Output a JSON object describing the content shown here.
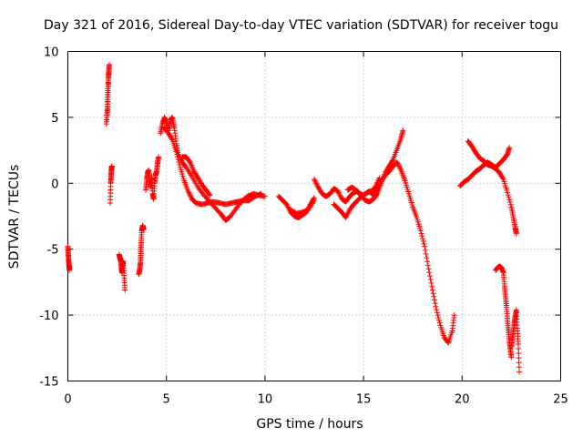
{
  "chart_data": {
    "type": "scatter",
    "title": "Day 321 of 2016, Sidereal Day-to-day VTEC variation (SDTVAR) for receiver togu",
    "xlabel": "GPS time / hours",
    "ylabel": "SDTVAR / TECUs",
    "xlim": [
      0,
      25
    ],
    "ylim": [
      -15,
      10
    ],
    "xticks": [
      0,
      5,
      10,
      15,
      20,
      25
    ],
    "yticks": [
      -15,
      -10,
      -5,
      0,
      5,
      10
    ],
    "xtick_labels": [
      "0",
      "5",
      "10",
      "15",
      "20",
      "25"
    ],
    "ytick_labels": [
      "-15",
      "-10",
      "-5",
      "0",
      "5",
      "10"
    ],
    "grid": true,
    "marker": "+",
    "marker_color": "#ff0000",
    "series": [
      {
        "name": "SDTVAR",
        "color": "#ff0000",
        "segments": [
          [
            [
              0.0,
              -4.8
            ],
            [
              0.02,
              -5.3
            ],
            [
              0.04,
              -5.8
            ],
            [
              0.06,
              -6.2
            ],
            [
              0.08,
              -6.6
            ]
          ],
          [
            [
              1.95,
              4.5
            ],
            [
              2.0,
              5.5
            ],
            [
              2.02,
              6.5
            ],
            [
              2.04,
              7.3
            ],
            [
              2.06,
              8.0
            ],
            [
              2.08,
              8.5
            ],
            [
              2.1,
              9.0
            ],
            [
              1.98,
              4.8
            ],
            [
              2.02,
              6.0
            ]
          ],
          [
            [
              2.15,
              -1.5
            ],
            [
              2.17,
              0.0
            ],
            [
              2.19,
              0.5
            ],
            [
              2.21,
              1.0
            ],
            [
              2.23,
              1.3
            ]
          ],
          [
            [
              2.6,
              -5.4
            ],
            [
              2.65,
              -5.7
            ],
            [
              2.7,
              -6.0
            ],
            [
              2.72,
              -6.5
            ],
            [
              2.75,
              -6.8
            ],
            [
              2.78,
              -6.2
            ],
            [
              2.8,
              -5.9
            ],
            [
              2.85,
              -7.0
            ],
            [
              2.9,
              -8.1
            ]
          ],
          [
            [
              3.6,
              -6.9
            ],
            [
              3.65,
              -6.5
            ],
            [
              3.68,
              -6.0
            ],
            [
              3.7,
              -5.2
            ],
            [
              3.72,
              -4.5
            ],
            [
              3.75,
              -3.6
            ],
            [
              3.78,
              -3.4
            ],
            [
              3.8,
              -3.2
            ],
            [
              3.85,
              -3.5
            ]
          ],
          [
            [
              3.95,
              -0.5
            ],
            [
              4.0,
              0.3
            ],
            [
              4.05,
              0.8
            ],
            [
              4.1,
              1.0
            ],
            [
              4.15,
              0.2
            ],
            [
              4.2,
              -0.3
            ],
            [
              4.25,
              0.5
            ],
            [
              4.3,
              -0.8
            ],
            [
              4.35,
              -1.2
            ],
            [
              4.4,
              0.0
            ],
            [
              4.45,
              0.6
            ],
            [
              4.5,
              0.9
            ],
            [
              4.55,
              1.5
            ],
            [
              4.6,
              2.0
            ]
          ],
          [
            [
              4.7,
              3.8
            ],
            [
              4.8,
              4.5
            ],
            [
              4.9,
              5.0
            ],
            [
              5.0,
              4.6
            ],
            [
              5.1,
              4.0
            ],
            [
              5.2,
              4.8
            ],
            [
              5.3,
              5.0
            ],
            [
              5.4,
              4.2
            ],
            [
              5.5,
              3.0
            ],
            [
              5.6,
              2.2
            ],
            [
              5.8,
              1.6
            ],
            [
              6.0,
              1.2
            ],
            [
              6.3,
              0.5
            ],
            [
              6.6,
              -0.3
            ],
            [
              6.9,
              -0.9
            ],
            [
              7.2,
              -1.4
            ],
            [
              7.5,
              -1.9
            ],
            [
              7.8,
              -2.4
            ],
            [
              8.0,
              -2.8
            ],
            [
              8.2,
              -2.6
            ],
            [
              8.5,
              -2.0
            ],
            [
              8.8,
              -1.4
            ],
            [
              9.1,
              -1.0
            ],
            [
              9.4,
              -0.8
            ],
            [
              9.7,
              -0.9
            ],
            [
              10.0,
              -1.0
            ]
          ],
          [
            [
              4.9,
              4.2
            ],
            [
              5.1,
              3.8
            ],
            [
              5.3,
              3.3
            ],
            [
              5.5,
              2.4
            ],
            [
              5.7,
              1.2
            ],
            [
              5.9,
              0.2
            ],
            [
              6.1,
              -0.6
            ],
            [
              6.3,
              -1.2
            ],
            [
              6.5,
              -1.5
            ],
            [
              6.8,
              -1.6
            ],
            [
              7.1,
              -1.5
            ],
            [
              7.4,
              -1.4
            ],
            [
              7.7,
              -1.5
            ],
            [
              8.0,
              -1.6
            ],
            [
              8.3,
              -1.5
            ],
            [
              8.6,
              -1.4
            ],
            [
              8.9,
              -1.3
            ],
            [
              9.2,
              -1.3
            ],
            [
              9.5,
              -1.0
            ],
            [
              9.8,
              -0.8
            ]
          ],
          [
            [
              5.8,
              2.0
            ],
            [
              6.0,
              2.0
            ],
            [
              6.2,
              1.6
            ],
            [
              6.4,
              0.9
            ],
            [
              6.6,
              0.4
            ],
            [
              6.8,
              -0.1
            ],
            [
              7.0,
              -0.5
            ],
            [
              7.2,
              -0.9
            ]
          ],
          [
            [
              10.7,
              -1.0
            ],
            [
              10.9,
              -1.3
            ],
            [
              11.1,
              -1.6
            ],
            [
              11.3,
              -2.2
            ],
            [
              11.5,
              -2.5
            ],
            [
              11.7,
              -2.6
            ],
            [
              11.9,
              -2.4
            ],
            [
              12.1,
              -2.2
            ],
            [
              12.3,
              -1.6
            ],
            [
              12.5,
              -1.1
            ]
          ],
          [
            [
              11.3,
              -2.0
            ],
            [
              11.6,
              -2.3
            ],
            [
              11.9,
              -2.2
            ],
            [
              12.2,
              -2.0
            ],
            [
              12.5,
              -1.3
            ]
          ],
          [
            [
              12.5,
              0.3
            ],
            [
              12.7,
              -0.3
            ],
            [
              12.9,
              -0.8
            ],
            [
              13.1,
              -1.0
            ],
            [
              13.3,
              -0.8
            ],
            [
              13.5,
              -0.4
            ],
            [
              13.7,
              -0.6
            ],
            [
              13.9,
              -1.2
            ],
            [
              14.1,
              -1.4
            ],
            [
              14.3,
              -1.0
            ],
            [
              14.5,
              -0.7
            ],
            [
              14.7,
              -0.6
            ],
            [
              14.9,
              -1.0
            ],
            [
              15.1,
              -1.3
            ],
            [
              15.3,
              -1.4
            ],
            [
              15.5,
              -1.2
            ],
            [
              15.7,
              -0.8
            ],
            [
              15.9,
              0.0
            ],
            [
              16.1,
              0.8
            ],
            [
              16.3,
              1.3
            ],
            [
              16.5,
              1.8
            ],
            [
              16.7,
              2.6
            ],
            [
              16.9,
              3.4
            ],
            [
              17.0,
              4.0
            ]
          ],
          [
            [
              13.5,
              -1.6
            ],
            [
              13.7,
              -1.9
            ],
            [
              13.9,
              -2.2
            ],
            [
              14.1,
              -2.6
            ],
            [
              14.3,
              -2.0
            ],
            [
              14.5,
              -1.6
            ],
            [
              14.7,
              -1.3
            ],
            [
              14.9,
              -1.0
            ],
            [
              15.1,
              -0.8
            ],
            [
              15.3,
              -0.6
            ],
            [
              15.5,
              -0.9
            ],
            [
              15.7,
              -0.5
            ],
            [
              15.9,
              0.2
            ],
            [
              16.1,
              0.6
            ],
            [
              16.3,
              0.9
            ],
            [
              16.5,
              1.3
            ],
            [
              16.7,
              1.6
            ],
            [
              16.9,
              1.0
            ],
            [
              17.1,
              0.2
            ],
            [
              17.3,
              -0.8
            ],
            [
              17.5,
              -1.8
            ],
            [
              17.7,
              -2.6
            ],
            [
              17.9,
              -3.6
            ],
            [
              18.1,
              -4.8
            ],
            [
              18.3,
              -6.5
            ],
            [
              18.5,
              -8.1
            ],
            [
              18.7,
              -9.6
            ],
            [
              18.9,
              -10.8
            ],
            [
              19.1,
              -11.7
            ],
            [
              19.3,
              -12.1
            ],
            [
              19.5,
              -11.2
            ],
            [
              19.6,
              -10.0
            ]
          ],
          [
            [
              14.2,
              -0.5
            ],
            [
              14.4,
              -0.3
            ],
            [
              14.6,
              -0.5
            ],
            [
              14.8,
              -0.8
            ],
            [
              15.0,
              -0.9
            ],
            [
              15.2,
              -0.7
            ],
            [
              15.4,
              -0.6
            ],
            [
              15.6,
              -0.3
            ],
            [
              15.8,
              0.4
            ]
          ],
          [
            [
              19.9,
              -0.2
            ],
            [
              20.1,
              0.1
            ],
            [
              20.3,
              0.3
            ],
            [
              20.5,
              0.6
            ],
            [
              20.7,
              0.9
            ],
            [
              20.9,
              1.1
            ],
            [
              21.1,
              1.4
            ],
            [
              21.3,
              1.6
            ],
            [
              21.5,
              1.4
            ],
            [
              21.7,
              1.2
            ],
            [
              21.9,
              1.5
            ],
            [
              22.1,
              1.8
            ],
            [
              22.3,
              2.2
            ],
            [
              22.4,
              2.7
            ]
          ],
          [
            [
              20.3,
              3.2
            ],
            [
              20.5,
              2.8
            ],
            [
              20.7,
              2.3
            ],
            [
              20.9,
              1.9
            ],
            [
              21.1,
              1.7
            ],
            [
              21.3,
              1.4
            ],
            [
              21.5,
              1.3
            ],
            [
              21.7,
              1.1
            ],
            [
              21.9,
              0.8
            ],
            [
              22.1,
              0.3
            ],
            [
              22.3,
              -0.7
            ],
            [
              22.5,
              -1.8
            ],
            [
              22.6,
              -2.6
            ],
            [
              22.7,
              -3.4
            ],
            [
              22.75,
              -3.8
            ]
          ],
          [
            [
              21.7,
              -6.6
            ],
            [
              21.8,
              -6.4
            ],
            [
              21.9,
              -6.3
            ],
            [
              22.0,
              -6.4
            ],
            [
              22.1,
              -6.8
            ],
            [
              22.15,
              -7.8
            ],
            [
              22.2,
              -8.6
            ],
            [
              22.25,
              -9.4
            ],
            [
              22.3,
              -10.4
            ],
            [
              22.35,
              -11.2
            ],
            [
              22.4,
              -12.0
            ],
            [
              22.45,
              -12.6
            ],
            [
              22.5,
              -13.2
            ]
          ],
          [
            [
              22.5,
              -12.4
            ],
            [
              22.55,
              -11.8
            ],
            [
              22.6,
              -11.2
            ],
            [
              22.65,
              -10.6
            ],
            [
              22.7,
              -10.1
            ],
            [
              22.75,
              -9.6
            ],
            [
              22.8,
              -11.0
            ],
            [
              22.85,
              -12.2
            ],
            [
              22.9,
              -14.3
            ]
          ]
        ]
      }
    ]
  }
}
